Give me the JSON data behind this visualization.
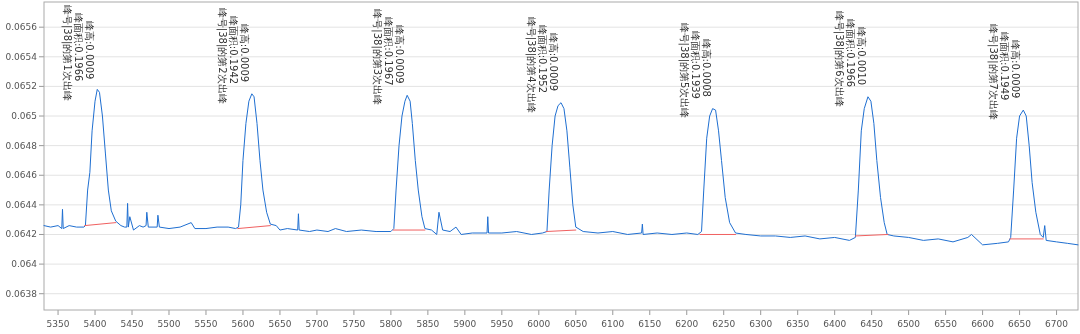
{
  "chart_data": {
    "type": "line",
    "xlim": [
      5331,
      6729
    ],
    "ylim": [
      0.06369,
      0.06577
    ],
    "xticks": [
      5350,
      5400,
      5450,
      5500,
      5550,
      5600,
      5650,
      5700,
      5750,
      5800,
      5850,
      5900,
      5950,
      6000,
      6050,
      6100,
      6150,
      6200,
      6250,
      6300,
      6350,
      6400,
      6450,
      6500,
      6550,
      6600,
      6650,
      6700
    ],
    "yticks": [
      {
        "value": 0.0638,
        "label": "0.0638"
      },
      {
        "value": 0.064,
        "label": "0.064"
      },
      {
        "value": 0.0642,
        "label": "0.0642"
      },
      {
        "value": 0.0644,
        "label": "0.0644"
      },
      {
        "value": 0.0646,
        "label": "0.0646"
      },
      {
        "value": 0.0648,
        "label": "0.0648"
      },
      {
        "value": 0.065,
        "label": "0.065"
      },
      {
        "value": 0.0652,
        "label": "0.0652"
      },
      {
        "value": 0.0654,
        "label": "0.0654"
      },
      {
        "value": 0.0656,
        "label": "0.0656"
      }
    ],
    "grid": "y",
    "marker": "none",
    "line_style": "solid",
    "series": [
      {
        "color": "#1f6fd1",
        "x": [
          5331,
          5340,
          5350,
          5355,
          5356,
          5357,
          5365,
          5375,
          5385,
          5387,
          5390,
          5393,
          5396,
          5400,
          5403,
          5406,
          5410,
          5414,
          5418,
          5422,
          5428,
          5435,
          5440,
          5443,
          5444,
          5445,
          5447,
          5452,
          5460,
          5465,
          5469,
          5470,
          5472,
          5484,
          5485,
          5487,
          5500,
          5515,
          5530,
          5535,
          5550,
          5565,
          5580,
          5590,
          5594,
          5597,
          5600,
          5604,
          5608,
          5612,
          5615,
          5619,
          5623,
          5627,
          5632,
          5637,
          5645,
          5650,
          5660,
          5674,
          5675,
          5676,
          5690,
          5700,
          5715,
          5725,
          5740,
          5760,
          5780,
          5800,
          5804,
          5807,
          5811,
          5815,
          5819,
          5822,
          5826,
          5829,
          5833,
          5837,
          5842,
          5846,
          5855,
          5862,
          5865,
          5870,
          5880,
          5888,
          5895,
          5910,
          5930,
          5931,
          5932,
          5950,
          5970,
          5990,
          6005,
          6011,
          6014,
          6018,
          6022,
          6026,
          6030,
          6034,
          6038,
          6042,
          6046,
          6050,
          6060,
          6080,
          6100,
          6120,
          6139,
          6140,
          6141,
          6160,
          6180,
          6200,
          6215,
          6220,
          6223,
          6227,
          6231,
          6235,
          6239,
          6243,
          6247,
          6252,
          6258,
          6266,
          6280,
          6300,
          6320,
          6340,
          6360,
          6380,
          6400,
          6420,
          6428,
          6432,
          6436,
          6440,
          6445,
          6449,
          6453,
          6457,
          6462,
          6467,
          6471,
          6480,
          6500,
          6520,
          6540,
          6560,
          6580,
          6585,
          6600,
          6620,
          6635,
          6638,
          6642,
          6646,
          6650,
          6655,
          6659,
          6663,
          6667,
          6672,
          6678,
          6682,
          6684,
          6686,
          6700,
          6715,
          6729
        ],
        "values": [
          0.06426,
          0.06425,
          0.06426,
          0.06424,
          0.06437,
          0.06424,
          0.06426,
          0.06425,
          0.06425,
          0.06426,
          0.0645,
          0.06462,
          0.0649,
          0.0651,
          0.06518,
          0.06516,
          0.065,
          0.06475,
          0.0645,
          0.06436,
          0.06429,
          0.06426,
          0.06425,
          0.06425,
          0.06441,
          0.06425,
          0.06432,
          0.06423,
          0.06426,
          0.06425,
          0.06426,
          0.06435,
          0.06425,
          0.06425,
          0.06433,
          0.06425,
          0.06424,
          0.06425,
          0.06428,
          0.06424,
          0.06424,
          0.06425,
          0.06425,
          0.06424,
          0.06425,
          0.0644,
          0.0647,
          0.06495,
          0.0651,
          0.06515,
          0.06513,
          0.06495,
          0.0647,
          0.0645,
          0.06435,
          0.06427,
          0.06426,
          0.06423,
          0.06424,
          0.06423,
          0.06434,
          0.06423,
          0.06422,
          0.06423,
          0.06422,
          0.06424,
          0.06422,
          0.06423,
          0.06422,
          0.06422,
          0.06424,
          0.0645,
          0.0648,
          0.065,
          0.0651,
          0.06514,
          0.0651,
          0.06495,
          0.0647,
          0.0645,
          0.06432,
          0.06424,
          0.06423,
          0.0642,
          0.06435,
          0.06423,
          0.06422,
          0.06425,
          0.0642,
          0.06421,
          0.06421,
          0.06432,
          0.06421,
          0.06421,
          0.06422,
          0.0642,
          0.06421,
          0.06422,
          0.0645,
          0.0648,
          0.065,
          0.06507,
          0.06509,
          0.06505,
          0.0649,
          0.06465,
          0.0644,
          0.06425,
          0.06422,
          0.06421,
          0.06422,
          0.0642,
          0.06421,
          0.06427,
          0.0642,
          0.06421,
          0.0642,
          0.06421,
          0.0642,
          0.06422,
          0.0645,
          0.06485,
          0.065,
          0.06505,
          0.06504,
          0.0649,
          0.0647,
          0.06445,
          0.06428,
          0.06421,
          0.0642,
          0.06419,
          0.06419,
          0.06418,
          0.06419,
          0.06417,
          0.06418,
          0.06416,
          0.06418,
          0.0645,
          0.0649,
          0.06505,
          0.06513,
          0.0651,
          0.06495,
          0.0647,
          0.06445,
          0.06428,
          0.0642,
          0.06419,
          0.06418,
          0.06416,
          0.06417,
          0.06415,
          0.06418,
          0.0642,
          0.06413,
          0.06414,
          0.06415,
          0.06418,
          0.0645,
          0.06485,
          0.065,
          0.06504,
          0.065,
          0.0648,
          0.06455,
          0.06435,
          0.0642,
          0.06418,
          0.06426,
          0.06416,
          0.06415,
          0.06414,
          0.06413
        ]
      },
      {
        "color": "#f06060",
        "x": [
          5386,
          5428
        ],
        "values": [
          0.06426,
          0.06428
        ]
      },
      {
        "color": "#f06060",
        "x": [
          5593,
          5637
        ],
        "values": [
          0.06424,
          0.06426
        ]
      },
      {
        "color": "#f06060",
        "x": [
          5803,
          5846
        ],
        "values": [
          0.06423,
          0.06423
        ]
      },
      {
        "color": "#f06060",
        "x": [
          6010,
          6050
        ],
        "values": [
          0.06422,
          0.06423
        ]
      },
      {
        "color": "#f06060",
        "x": [
          6218,
          6266
        ],
        "values": [
          0.0642,
          0.0642
        ]
      },
      {
        "color": "#f06060",
        "x": [
          6428,
          6472
        ],
        "values": [
          0.06419,
          0.0642
        ]
      },
      {
        "color": "#f06060",
        "x": [
          6637,
          6682
        ],
        "values": [
          0.06417,
          0.06417
        ]
      }
    ],
    "annotations": [
      {
        "text": "峰号|38|的第1次出峰",
        "x": 5403,
        "y": 0.06518
      },
      {
        "text": "峰面积:0.1966",
        "x": 5403,
        "y": 0.06518
      },
      {
        "text": "峰高:0.0009",
        "x": 5403,
        "y": 0.06518
      },
      {
        "text": "峰号|38|的第2次出峰",
        "x": 5612,
        "y": 0.06515
      },
      {
        "text": "峰面积:0.1942",
        "x": 5612,
        "y": 0.06515
      },
      {
        "text": "峰高:0.0009",
        "x": 5612,
        "y": 0.06515
      },
      {
        "text": "峰号|38|的第3次出峰",
        "x": 5822,
        "y": 0.06514
      },
      {
        "text": "峰面积:0.1967",
        "x": 5822,
        "y": 0.06514
      },
      {
        "text": "峰高:0.0009",
        "x": 5822,
        "y": 0.06514
      },
      {
        "text": "峰号|38|的第4次出峰",
        "x": 6030,
        "y": 0.06509
      },
      {
        "text": "峰面积:0.1952",
        "x": 6030,
        "y": 0.06509
      },
      {
        "text": "峰高:0.0009",
        "x": 6030,
        "y": 0.06509
      },
      {
        "text": "峰号|38|的第5次出峰",
        "x": 6237,
        "y": 0.06505
      },
      {
        "text": "峰面积:0.1939",
        "x": 6237,
        "y": 0.06505
      },
      {
        "text": "峰高:0.0008",
        "x": 6237,
        "y": 0.06505
      },
      {
        "text": "峰号|38|的第6次出峰",
        "x": 6447,
        "y": 0.06513
      },
      {
        "text": "峰面积:0.1966",
        "x": 6447,
        "y": 0.06513
      },
      {
        "text": "峰高:0.0010",
        "x": 6447,
        "y": 0.06513
      },
      {
        "text": "峰号|38|的第7次出峰",
        "x": 6655,
        "y": 0.06504
      },
      {
        "text": "峰面积:0.1949",
        "x": 6655,
        "y": 0.06504
      },
      {
        "text": "峰高:0.0009",
        "x": 6655,
        "y": 0.06504
      }
    ]
  }
}
